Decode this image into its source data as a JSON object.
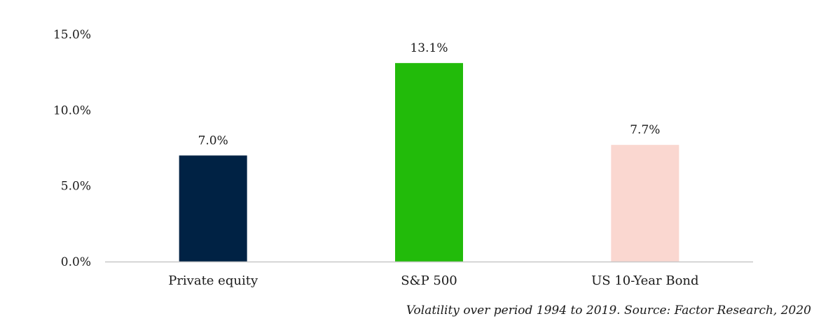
{
  "chart_data": {
    "type": "bar",
    "categories": [
      "Private equity",
      "S&P 500",
      "US 10-Year Bond"
    ],
    "values": [
      7.0,
      13.1,
      7.7
    ],
    "data_labels": [
      "7.0%",
      "13.1%",
      "7.7%"
    ],
    "colors": [
      "#002244",
      "#22bb0a",
      "#fad7d0"
    ],
    "ylim": [
      0,
      15
    ],
    "yticks": [
      0,
      5,
      10,
      15
    ],
    "ytick_labels": [
      "0.0%",
      "5.0%",
      "10.0%",
      "15.0%"
    ],
    "grid": false,
    "legend": "none"
  },
  "source_note": "Volatility over period 1994 to 2019. Source: Factor Research, 2020"
}
